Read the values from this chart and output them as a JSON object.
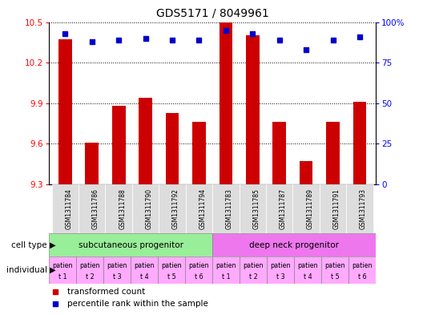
{
  "title": "GDS5171 / 8049961",
  "samples": [
    "GSM1311784",
    "GSM1311786",
    "GSM1311788",
    "GSM1311790",
    "GSM1311792",
    "GSM1311794",
    "GSM1311783",
    "GSM1311785",
    "GSM1311787",
    "GSM1311789",
    "GSM1311791",
    "GSM1311793"
  ],
  "bar_values": [
    10.37,
    9.61,
    9.88,
    9.94,
    9.83,
    9.76,
    10.5,
    10.4,
    9.76,
    9.47,
    9.76,
    9.91
  ],
  "dot_values": [
    93,
    88,
    89,
    90,
    89,
    89,
    95,
    93,
    89,
    83,
    89,
    91
  ],
  "ylim": [
    9.3,
    10.5
  ],
  "yticks_left": [
    9.3,
    9.6,
    9.9,
    10.2,
    10.5
  ],
  "yticks_right": [
    0,
    25,
    50,
    75,
    100
  ],
  "bar_color": "#cc0000",
  "dot_color": "#0000cc",
  "bar_bottom": 9.3,
  "cell_type_groups": [
    {
      "label": "subcutaneous progenitor",
      "start": 0,
      "end": 6,
      "color": "#99ee99"
    },
    {
      "label": "deep neck progenitor",
      "start": 6,
      "end": 12,
      "color": "#ee77ee"
    }
  ],
  "individual_labels": [
    "patien\nt 1",
    "patien\nt 2",
    "patien\nt 3",
    "patien\nt 4",
    "patien\nt 5",
    "patien\nt 6",
    "patien\nt 1",
    "patien\nt 2",
    "patien\nt 3",
    "patien\nt 4",
    "patien\nt 5",
    "patien\nt 6"
  ],
  "legend_items": [
    {
      "color": "#cc0000",
      "marker": "s",
      "label": "transformed count"
    },
    {
      "color": "#0000cc",
      "marker": "s",
      "label": "percentile rank within the sample"
    }
  ],
  "title_fontsize": 10,
  "tick_fontsize": 7.5,
  "bar_width": 0.5,
  "cell_type_row_label": "cell type",
  "individual_row_label": "individual"
}
